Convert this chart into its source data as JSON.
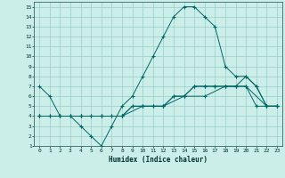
{
  "background_color": "#cceee8",
  "grid_color": "#99cccc",
  "line_color": "#006666",
  "xlabel": "Humidex (Indice chaleur)",
  "xlim": [
    -0.5,
    23.5
  ],
  "ylim": [
    1,
    15.5
  ],
  "xticks": [
    0,
    1,
    2,
    3,
    4,
    5,
    6,
    7,
    8,
    9,
    10,
    11,
    12,
    13,
    14,
    15,
    16,
    17,
    18,
    19,
    20,
    21,
    22,
    23
  ],
  "yticks": [
    1,
    2,
    3,
    4,
    5,
    6,
    7,
    8,
    9,
    10,
    11,
    12,
    13,
    14,
    15
  ],
  "series": [
    {
      "x": [
        0,
        1,
        2,
        3,
        4,
        5,
        6,
        7,
        8,
        9,
        10,
        11,
        12,
        13,
        14,
        15,
        16,
        17,
        18,
        19,
        20,
        21,
        22,
        23
      ],
      "y": [
        7,
        6,
        4,
        4,
        3,
        2,
        1,
        3,
        5,
        6,
        8,
        10,
        12,
        14,
        15,
        15,
        14,
        13,
        9,
        8,
        8,
        7,
        5,
        5
      ]
    },
    {
      "x": [
        0,
        1,
        2,
        3,
        4,
        5,
        6,
        7,
        8,
        9,
        10,
        11,
        12,
        13,
        14,
        15,
        16,
        17,
        18,
        19,
        20,
        21,
        22,
        23
      ],
      "y": [
        4,
        4,
        4,
        4,
        4,
        4,
        4,
        4,
        4,
        5,
        5,
        5,
        5,
        6,
        6,
        7,
        7,
        7,
        7,
        7,
        8,
        7,
        5,
        5
      ]
    },
    {
      "x": [
        0,
        1,
        2,
        3,
        4,
        5,
        6,
        7,
        8,
        9,
        10,
        11,
        12,
        13,
        14,
        15,
        16,
        17,
        18,
        19,
        20,
        21,
        22,
        23
      ],
      "y": [
        4,
        4,
        4,
        4,
        4,
        4,
        4,
        4,
        4,
        5,
        5,
        5,
        5,
        6,
        6,
        7,
        7,
        7,
        7,
        7,
        7,
        5,
        5,
        5
      ]
    },
    {
      "x": [
        0,
        2,
        4,
        6,
        8,
        10,
        12,
        14,
        16,
        18,
        20,
        22,
        23
      ],
      "y": [
        4,
        4,
        4,
        4,
        4,
        5,
        5,
        6,
        6,
        7,
        7,
        5,
        5
      ]
    }
  ]
}
